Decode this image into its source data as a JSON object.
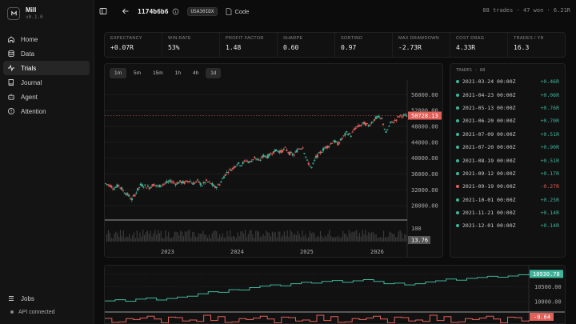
{
  "app": {
    "name": "Mill",
    "version": "v0.1.0"
  },
  "nav": {
    "items": [
      {
        "label": "Home",
        "icon": "home-icon"
      },
      {
        "label": "Data",
        "icon": "database-icon"
      },
      {
        "label": "Trials",
        "icon": "trials-icon",
        "active": true
      },
      {
        "label": "Journal",
        "icon": "book-icon"
      },
      {
        "label": "Agent",
        "icon": "bot-icon"
      },
      {
        "label": "Attention",
        "icon": "alert-icon"
      }
    ],
    "jobs_label": "Jobs",
    "api_status": "API connected"
  },
  "header": {
    "trial_id": "1174b6b6",
    "symbol_badge": "USA30IDX",
    "code_label": "Code",
    "summary": "88 trades · 47 won · 6.21R"
  },
  "metrics": [
    {
      "label": "EXPECTANCY",
      "value": "+0.07R"
    },
    {
      "label": "WIN RATE",
      "value": "53%"
    },
    {
      "label": "PROFIT FACTOR",
      "value": "1.48"
    },
    {
      "label": "SHARPE",
      "value": "0.60"
    },
    {
      "label": "SORTINO",
      "value": "0.97"
    },
    {
      "label": "MAX DRAWDOWN",
      "value": "-2.73R"
    },
    {
      "label": "COST DRAG",
      "value": "4.33R"
    },
    {
      "label": "TRADES / YR",
      "value": "16.3"
    }
  ],
  "timeframes": [
    {
      "label": "1m",
      "selected": true
    },
    {
      "label": "5m"
    },
    {
      "label": "15m"
    },
    {
      "label": "1h"
    },
    {
      "label": "4h"
    },
    {
      "label": "1d",
      "selected": true
    }
  ],
  "colors": {
    "up": "#3fb49a",
    "down": "#e0605a",
    "accent": "#3fb49a"
  },
  "chart_data": [
    {
      "type": "line",
      "title": "",
      "x_ticks": [
        "2023",
        "2024",
        "2025",
        "2026"
      ],
      "y_ticks": [
        "56000.00",
        "52000.00",
        "48000.00",
        "44000.00",
        "40000.00",
        "36000.00",
        "32000.00",
        "28000.00"
      ],
      "ylim": [
        25000,
        58500
      ],
      "last_price": "50728.13",
      "volume_tick": "100",
      "volume_last": "13.76",
      "series": [
        {
          "values": [
            33600,
            33100,
            32400,
            33200,
            31800,
            30800,
            29600,
            31400,
            33200,
            33000,
            32600,
            33400,
            32800,
            33400,
            33800,
            34200,
            33600,
            34000,
            33800,
            34400,
            33600,
            34200,
            33200,
            34200,
            33600,
            32600,
            33400,
            35400,
            36800,
            37400,
            38600,
            38400,
            39400,
            39000,
            40200,
            39200,
            40600,
            40400,
            41400,
            42000,
            41600,
            42400,
            41200,
            40800,
            42400,
            42800,
            39200,
            37600,
            40200,
            41400,
            42600,
            43200,
            44400,
            43600,
            45000,
            46400,
            45800,
            47600,
            48200,
            48800,
            48200,
            49400,
            50400,
            49800,
            46400,
            48800,
            49400,
            50600,
            50728
          ]
        }
      ]
    },
    {
      "type": "line",
      "y_ticks": [
        "10930.78",
        "10500.00",
        "10000.00"
      ],
      "last_value": "10930.78",
      "pnl_value": "-0.64",
      "series": [
        {
          "values": [
            10020,
            10060,
            10010,
            10080,
            10120,
            10050,
            10100,
            10150,
            10180,
            10260,
            10330,
            10310,
            10400,
            10390,
            10470,
            10520,
            10560,
            10530,
            10600,
            10650,
            10620,
            10680,
            10710,
            10650,
            10700,
            10740,
            10680,
            10600,
            10620,
            10560,
            10600,
            10660,
            10700,
            10760,
            10720,
            10780,
            10810,
            10850,
            10820,
            10860,
            10900,
            10930.78
          ]
        }
      ]
    }
  ],
  "trades": {
    "header": "TRADES · 88",
    "rows": [
      {
        "date": "2021-03-24 00:00Z",
        "r": "+0.46R",
        "win": true
      },
      {
        "date": "2021-04-23 00:00Z",
        "r": "+0.06R",
        "win": true
      },
      {
        "date": "2021-05-13 00:00Z",
        "r": "+0.76R",
        "win": true
      },
      {
        "date": "2021-06-20 00:00Z",
        "r": "+0.70R",
        "win": true
      },
      {
        "date": "2021-07-09 00:00Z",
        "r": "+0.51R",
        "win": true
      },
      {
        "date": "2021-07-20 00:00Z",
        "r": "+0.90R",
        "win": true
      },
      {
        "date": "2021-08-19 00:00Z",
        "r": "+0.51R",
        "win": true
      },
      {
        "date": "2021-09-12 00:00Z",
        "r": "+0.17R",
        "win": true
      },
      {
        "date": "2021-09-19 00:00Z",
        "r": "-0.27R",
        "win": false
      },
      {
        "date": "2021-10-01 00:00Z",
        "r": "+0.25R",
        "win": true
      },
      {
        "date": "2021-11-21 00:00Z",
        "r": "+0.14R",
        "win": true
      },
      {
        "date": "2021-12-01 00:00Z",
        "r": "+0.14R",
        "win": true
      }
    ]
  }
}
